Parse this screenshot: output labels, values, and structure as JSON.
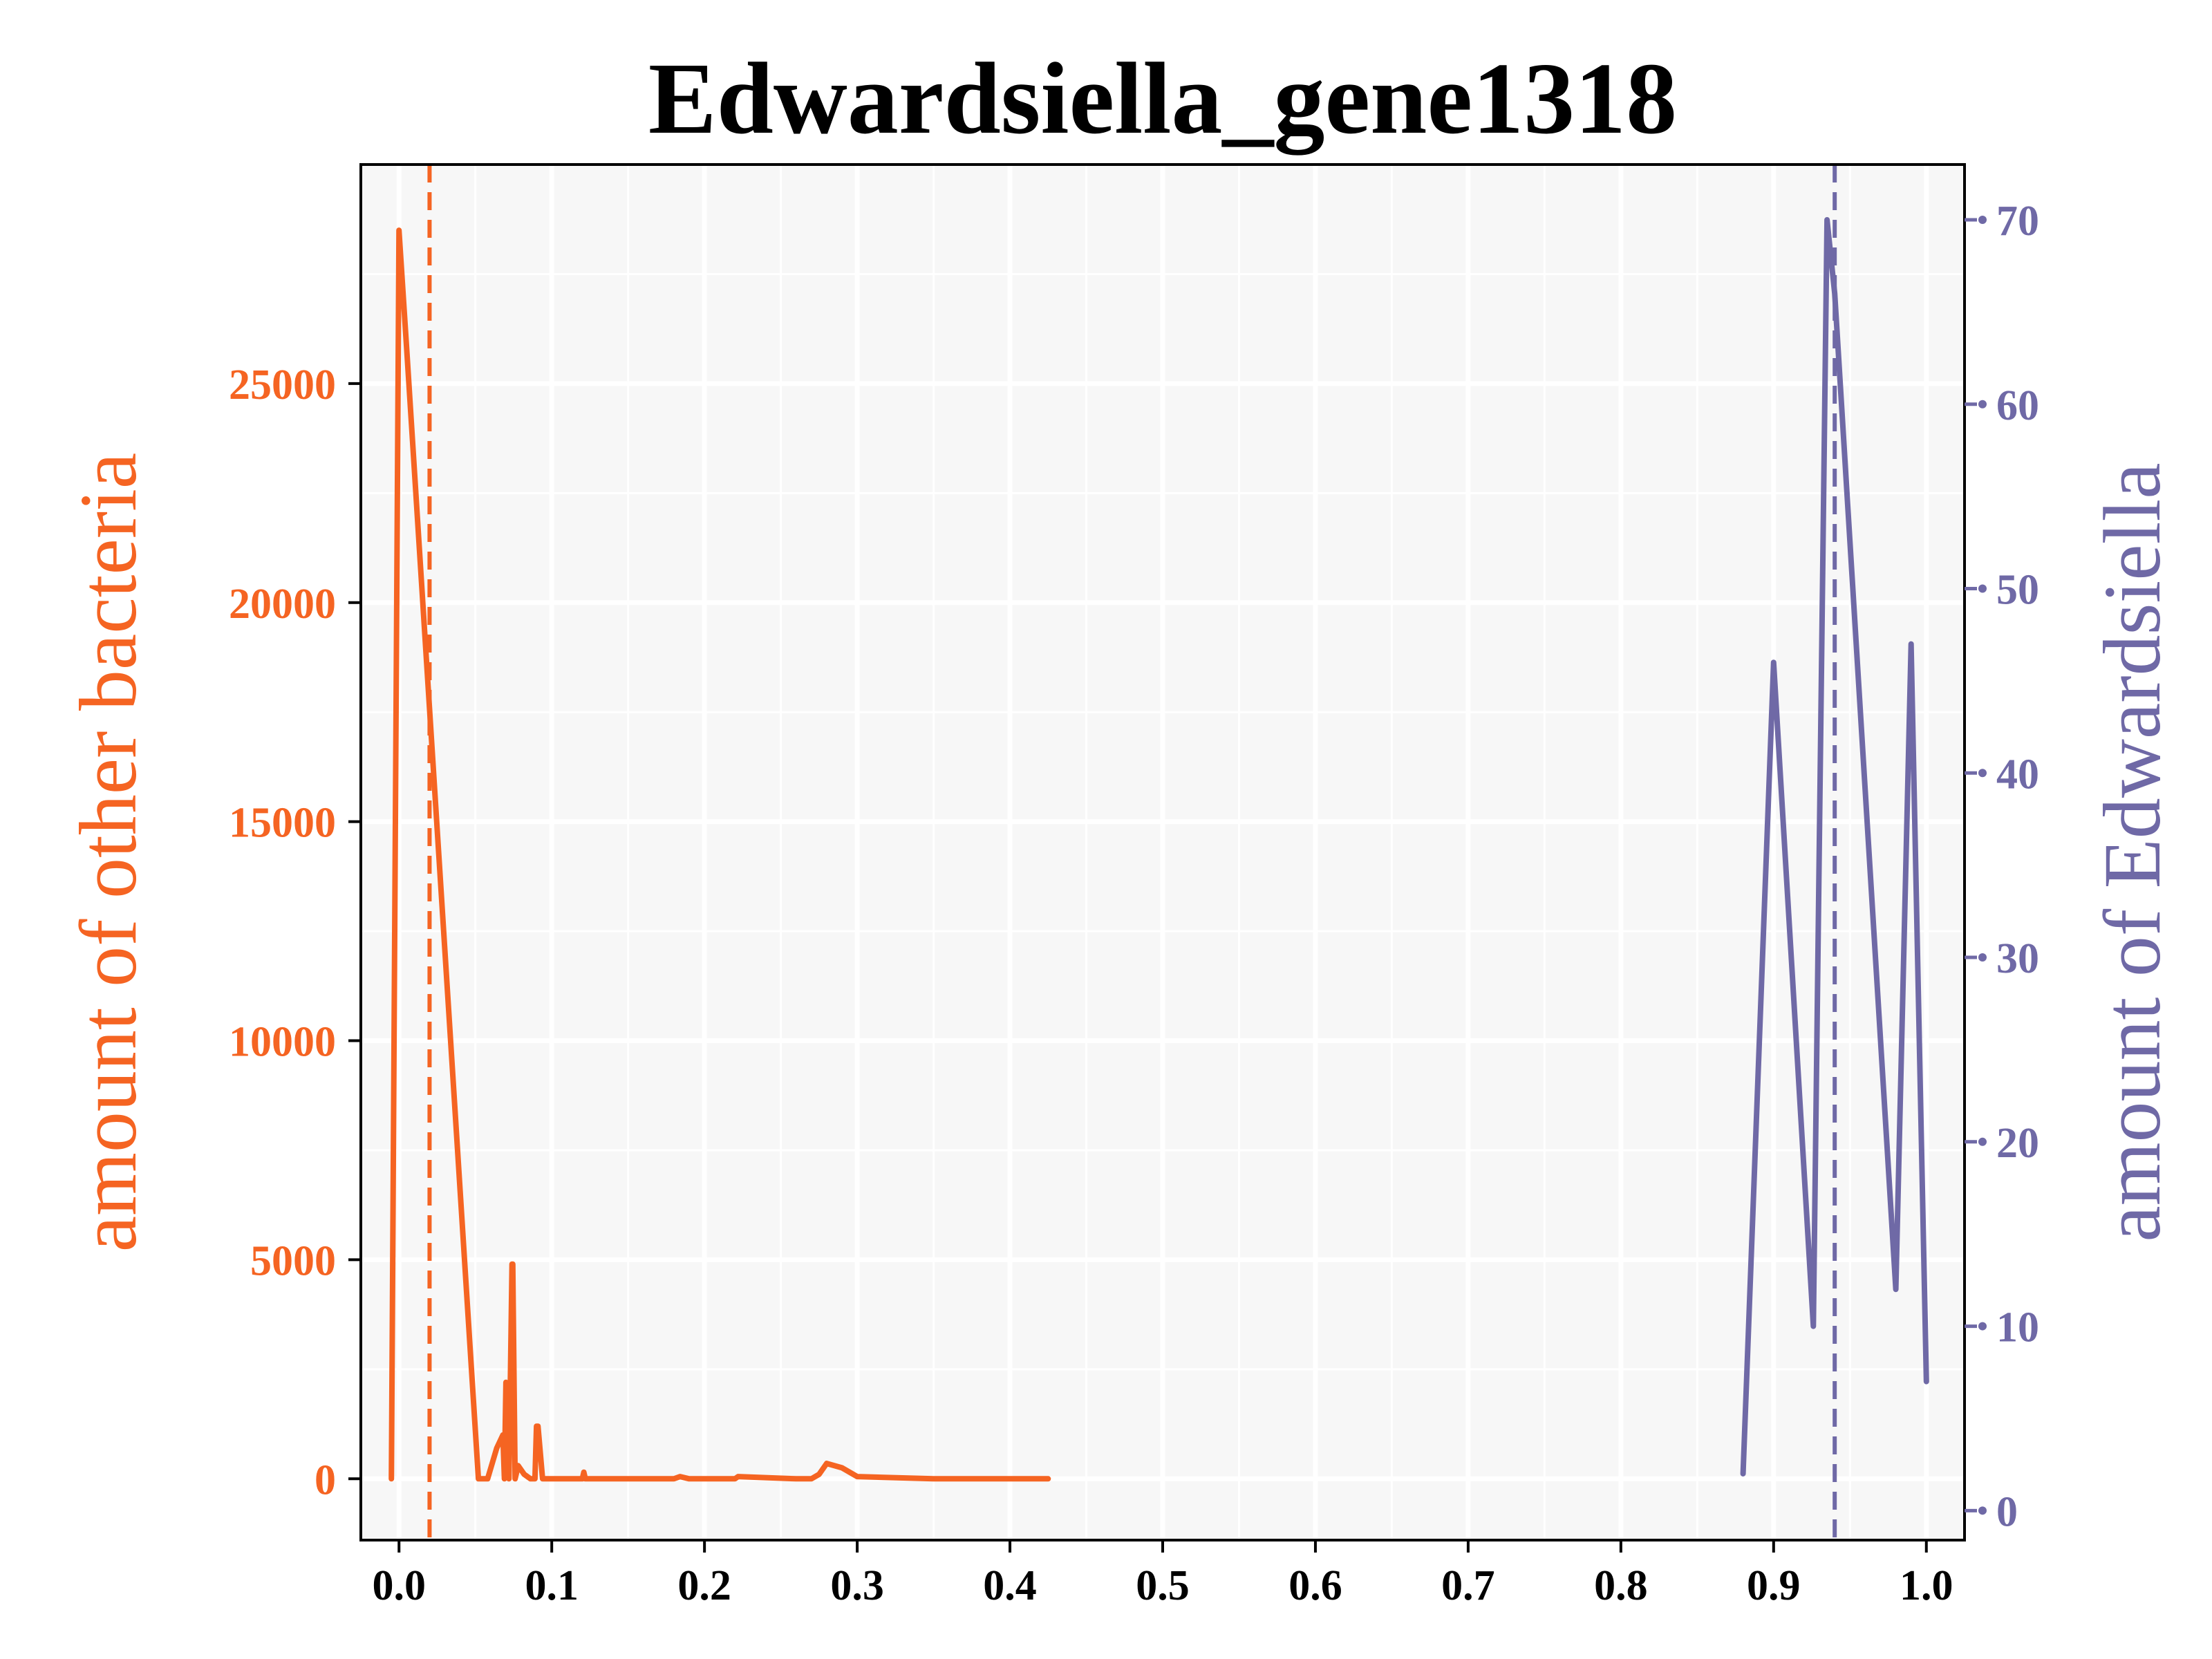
{
  "chart_data": {
    "type": "line",
    "title": "Edwardsiella_gene1318",
    "xlabel": "",
    "ylabel_left": "amount of other bacteria",
    "ylabel_right": "amount of Edwardsiella",
    "xlim": [
      -0.025,
      1.025
    ],
    "ylim_left": [
      -1400,
      30000
    ],
    "ylim_right": [
      -1.6,
      73
    ],
    "x_ticks": [
      "0.0",
      "0.1",
      "0.2",
      "0.3",
      "0.4",
      "0.5",
      "0.6",
      "0.7",
      "0.8",
      "0.9",
      "1.0"
    ],
    "y_left_ticks": [
      "0",
      "5000",
      "10000",
      "15000",
      "20000",
      "25000"
    ],
    "y_right_ticks": [
      "0",
      "10",
      "20",
      "30",
      "40",
      "50",
      "60",
      "70"
    ],
    "grid": true,
    "series": [
      {
        "name": "",
        "axis": "left",
        "color": "#f56422",
        "x": [
          -0.005,
          0.0,
          0.005,
          0.052,
          0.058,
          0.064,
          0.068,
          0.069,
          0.07,
          0.072,
          0.074,
          0.0745,
          0.076,
          0.078,
          0.082,
          0.086,
          0.089,
          0.09,
          0.091,
          0.094,
          0.1,
          0.11,
          0.12,
          0.121,
          0.122,
          0.13,
          0.15,
          0.18,
          0.184,
          0.19,
          0.22,
          0.222,
          0.26,
          0.27,
          0.275,
          0.28,
          0.29,
          0.3,
          0.35,
          0.4,
          0.425
        ],
        "y": [
          0,
          28500,
          25800,
          0,
          0,
          700,
          1000,
          0,
          2200,
          0,
          4900,
          4900,
          0,
          300,
          100,
          0,
          0,
          1200,
          1200,
          0,
          0,
          0,
          0,
          150,
          0,
          0,
          0,
          0,
          50,
          0,
          0,
          50,
          0,
          0,
          100,
          350,
          250,
          50,
          0,
          0,
          0
        ],
        "vline": 0.02
      },
      {
        "name": "",
        "axis": "right",
        "color": "#6f69a6",
        "x": [
          0.88,
          0.9,
          0.926,
          0.935,
          0.94,
          0.98,
          0.99,
          1.0
        ],
        "y": [
          2,
          46,
          10,
          70,
          66,
          12,
          47,
          7
        ],
        "vline": 0.94
      }
    ]
  }
}
